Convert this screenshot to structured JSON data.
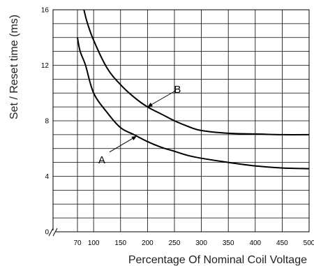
{
  "chart_data": {
    "type": "line",
    "xlabel": "Percentage Of Nominal Coil Voltage",
    "ylabel": "Set / Reset time (ms)",
    "x_ticks": [
      "70",
      "100",
      "150",
      "200",
      "250",
      "300",
      "350",
      "400",
      "450",
      "500"
    ],
    "y_ticks": [
      "0",
      "4",
      "8",
      "12",
      "16"
    ],
    "xlim": [
      70,
      500
    ],
    "ylim": [
      0,
      16
    ],
    "axis_break": "x",
    "grid": true,
    "series": [
      {
        "name": "A",
        "x": [
          70,
          75,
          85,
          100,
          125,
          150,
          175,
          200,
          225,
          250,
          275,
          300,
          350,
          400,
          450,
          500
        ],
        "y": [
          14.0,
          13.0,
          12.0,
          10.0,
          8.6,
          7.5,
          7.0,
          6.5,
          6.1,
          5.8,
          5.5,
          5.3,
          5.0,
          4.75,
          4.6,
          4.55
        ]
      },
      {
        "name": "B",
        "x": [
          82,
          88,
          100,
          125,
          150,
          175,
          200,
          225,
          250,
          275,
          300,
          350,
          400,
          450,
          500
        ],
        "y": [
          16.0,
          15.1,
          13.8,
          11.8,
          10.6,
          9.7,
          9.0,
          8.5,
          8.0,
          7.6,
          7.3,
          7.1,
          7.05,
          7.0,
          7.0
        ]
      }
    ],
    "annotations": [
      {
        "text": "A",
        "x": 180,
        "y": 6.9
      },
      {
        "text": "B",
        "x": 200,
        "y": 9.0
      }
    ]
  }
}
